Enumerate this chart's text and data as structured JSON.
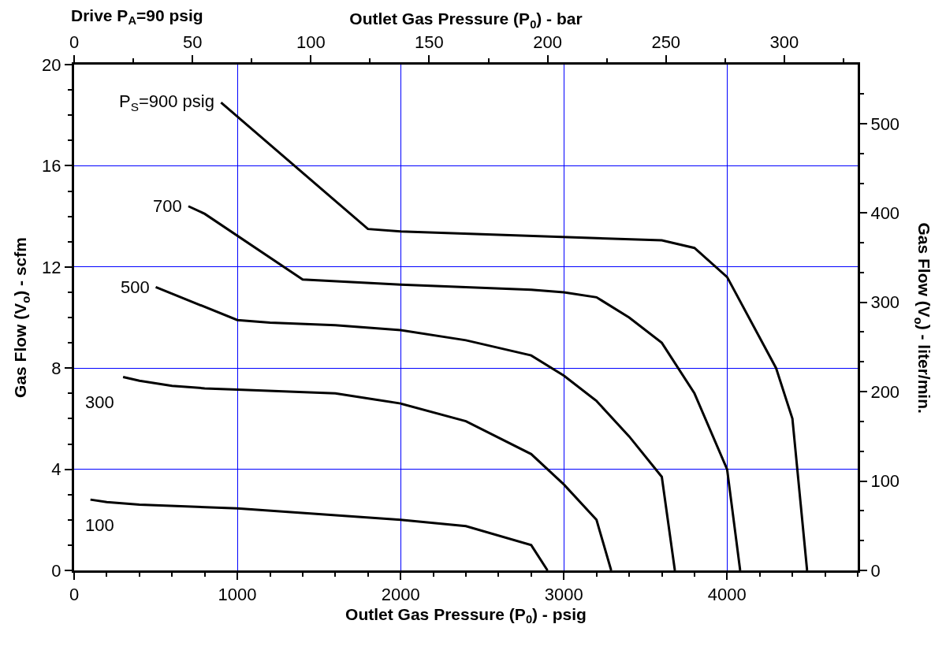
{
  "chart_data": {
    "type": "line",
    "line_style": "solid",
    "grid": true,
    "xlabel": "Outlet Gas Pressure (P$_{0}$) - psig",
    "x2label": "Outlet Gas Pressure (P$_{0}$) - bar",
    "ylabel": "Gas Flow (V$_{o}$) - scfm",
    "y2label": "Gas Flow (V$_{o}$) - liter/min.",
    "annotations": [
      "Drive P$_{A}$=90 psig"
    ],
    "xlim": [
      0,
      4800
    ],
    "xticks": [
      0,
      {
        "value": 200,
        "label": null
      },
      {
        "value": 400,
        "label": null
      },
      {
        "value": 600,
        "label": null
      },
      {
        "value": 800,
        "label": null
      },
      1000,
      {
        "value": 1200,
        "label": null
      },
      {
        "value": 1400,
        "label": null
      },
      {
        "value": 1600,
        "label": null
      },
      {
        "value": 1800,
        "label": null
      },
      2000,
      {
        "value": 2200,
        "label": null
      },
      {
        "value": 2400,
        "label": null
      },
      {
        "value": 2600,
        "label": null
      },
      {
        "value": 2800,
        "label": null
      },
      3000,
      {
        "value": 3200,
        "label": null
      },
      {
        "value": 3400,
        "label": null
      },
      {
        "value": 3600,
        "label": null
      },
      {
        "value": 3800,
        "label": null
      },
      4000,
      {
        "value": 4200,
        "label": null
      },
      {
        "value": 4400,
        "label": null
      },
      {
        "value": 4600,
        "label": null
      },
      {
        "value": 4800,
        "label": null
      }
    ],
    "x2lim": [
      0,
      331
    ],
    "x2ticks": [
      0,
      {
        "value": 25,
        "label": null
      },
      50,
      {
        "value": 75,
        "label": null
      },
      100,
      {
        "value": 125,
        "label": null
      },
      150,
      {
        "value": 175,
        "label": null
      },
      200,
      {
        "value": 225,
        "label": null
      },
      250,
      {
        "value": 275,
        "label": null
      },
      300,
      {
        "value": 325,
        "label": null
      }
    ],
    "ylim": [
      0,
      20
    ],
    "yticks": [
      0,
      {
        "value": 1,
        "label": null
      },
      {
        "value": 2,
        "label": null
      },
      {
        "value": 3,
        "label": null
      },
      4,
      {
        "value": 5,
        "label": null
      },
      {
        "value": 6,
        "label": null
      },
      {
        "value": 7,
        "label": null
      },
      8,
      {
        "value": 9,
        "label": null
      },
      {
        "value": 10,
        "label": null
      },
      {
        "value": 11,
        "label": null
      },
      12,
      {
        "value": 13,
        "label": null
      },
      {
        "value": 14,
        "label": null
      },
      {
        "value": 15,
        "label": null
      },
      16,
      {
        "value": 17,
        "label": null
      },
      {
        "value": 18,
        "label": null
      },
      {
        "value": 19,
        "label": null
      },
      20
    ],
    "y2lim": [
      0,
      566
    ],
    "y2ticks": [
      0,
      {
        "value": 33.3,
        "label": null
      },
      {
        "value": 66.7,
        "label": null
      },
      100,
      {
        "value": 133.3,
        "label": null
      },
      {
        "value": 166.7,
        "label": null
      },
      200,
      {
        "value": 233.3,
        "label": null
      },
      {
        "value": 266.7,
        "label": null
      },
      300,
      {
        "value": 333.3,
        "label": null
      },
      {
        "value": 366.7,
        "label": null
      },
      400,
      {
        "value": 433.3,
        "label": null
      },
      {
        "value": 466.7,
        "label": null
      },
      500,
      {
        "value": 533.3,
        "label": null
      }
    ],
    "series": [
      {
        "name": "P$_{S}$=900 psig",
        "color": "#000000",
        "x": [
          900,
          1800,
          2000,
          3600,
          3800,
          4000,
          4300,
          4400,
          4490
        ],
        "values": [
          18.5,
          13.5,
          13.4,
          13.05,
          12.75,
          11.6,
          8.0,
          6.0,
          0
        ]
      },
      {
        "name": "700",
        "color": "#000000",
        "x": [
          700,
          800,
          1400,
          2000,
          2800,
          3000,
          3200,
          3400,
          3600,
          3800,
          4000,
          4080
        ],
        "values": [
          14.4,
          14.1,
          11.5,
          11.3,
          11.1,
          11.0,
          10.8,
          10.0,
          9.0,
          7.0,
          4.0,
          0
        ]
      },
      {
        "name": "500",
        "color": "#000000",
        "x": [
          500,
          1000,
          1200,
          1600,
          2000,
          2400,
          2800,
          3000,
          3200,
          3400,
          3600,
          3680
        ],
        "values": [
          11.2,
          9.9,
          9.8,
          9.7,
          9.5,
          9.1,
          8.5,
          7.7,
          6.7,
          5.3,
          3.7,
          0
        ]
      },
      {
        "name": "300",
        "color": "#000000",
        "x": [
          300,
          400,
          600,
          800,
          1000,
          1600,
          2000,
          2400,
          2800,
          3000,
          3200,
          3290
        ],
        "values": [
          7.65,
          7.5,
          7.3,
          7.2,
          7.15,
          7.0,
          6.6,
          5.9,
          4.6,
          3.4,
          2.0,
          0
        ]
      },
      {
        "name": "100",
        "color": "#000000",
        "x": [
          100,
          200,
          400,
          1000,
          2000,
          2400,
          2800,
          2900
        ],
        "values": [
          2.8,
          2.7,
          2.6,
          2.45,
          2.0,
          1.75,
          1.0,
          0
        ]
      }
    ]
  }
}
